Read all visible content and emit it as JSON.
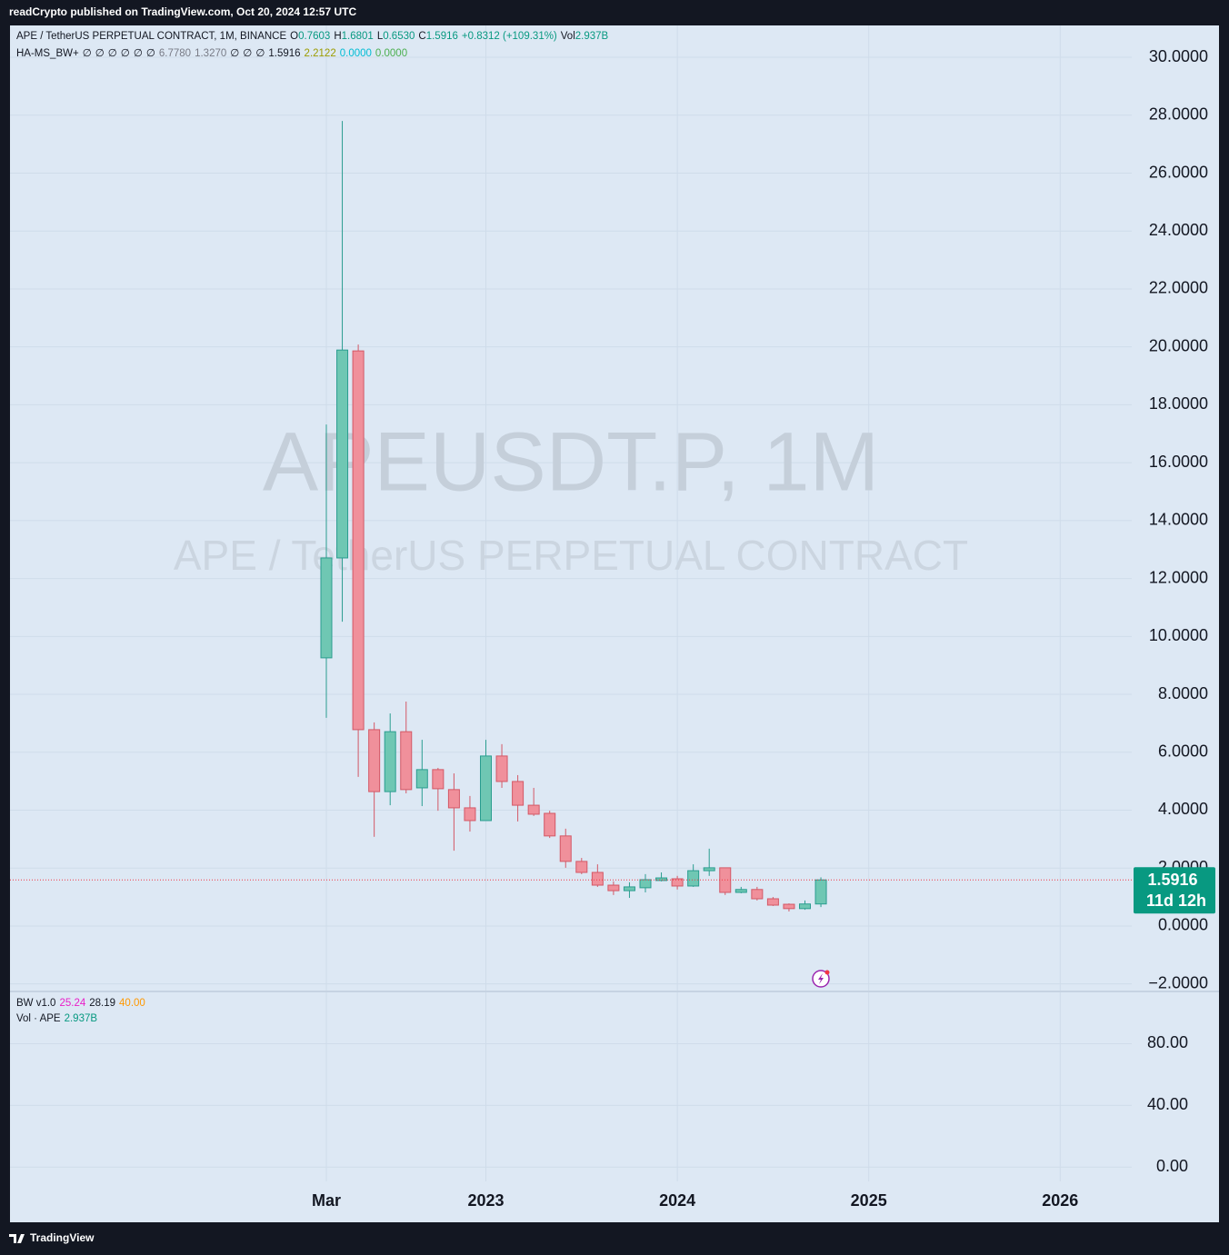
{
  "header": "readCrypto published on TradingView.com, Oct 20, 2024 12:57 UTC",
  "footer": "TradingView",
  "legend": {
    "symbol": "APE / TetherUS PERPETUAL CONTRACT, 1M, BINANCE",
    "ohlc": [
      {
        "label": "O",
        "value": "0.7603"
      },
      {
        "label": "H",
        "value": "1.6801"
      },
      {
        "label": "L",
        "value": "0.6530"
      },
      {
        "label": "C",
        "value": "1.5916"
      }
    ],
    "change": "+0.8312 (+109.31%)",
    "volume_label": "Vol",
    "volume": "2.937B"
  },
  "indicator": {
    "name": "HA-MS_BW+",
    "values": [
      {
        "text": "∅",
        "color": "#131722"
      },
      {
        "text": "∅",
        "color": "#131722"
      },
      {
        "text": "∅",
        "color": "#131722"
      },
      {
        "text": "∅",
        "color": "#131722"
      },
      {
        "text": "∅",
        "color": "#131722"
      },
      {
        "text": "∅",
        "color": "#131722"
      },
      {
        "text": "6.7780",
        "color": "#787b86"
      },
      {
        "text": "1.3270",
        "color": "#787b86"
      },
      {
        "text": "∅",
        "color": "#131722"
      },
      {
        "text": "∅",
        "color": "#131722"
      },
      {
        "text": "∅",
        "color": "#131722"
      },
      {
        "text": "1.5916",
        "color": "#131722"
      },
      {
        "text": "2.2122",
        "color": "#9c9c00"
      },
      {
        "text": "0.0000",
        "color": "#00bcd4"
      },
      {
        "text": "0.0000",
        "color": "#4caf50"
      }
    ]
  },
  "watermark": {
    "symbol": "APEUSDT.P, 1M",
    "description": "APE / TetherUS PERPETUAL CONTRACT"
  },
  "price_label": {
    "price": "1.5916",
    "countdown": "11d 12h",
    "color": "#089981"
  },
  "chart_data": {
    "type": "candlestick",
    "categories": [
      "Mar",
      null,
      null,
      null,
      null,
      null,
      null,
      null,
      null,
      null,
      "2023",
      null,
      null,
      null,
      null,
      null,
      null,
      null,
      null,
      null,
      null,
      null,
      "2024",
      null,
      null,
      null,
      null,
      null,
      null,
      null,
      null,
      null,
      null,
      null,
      "2025",
      null,
      null,
      null,
      null,
      null,
      null,
      null,
      null,
      null,
      null,
      null,
      "2026"
    ],
    "series": [
      {
        "up_color": "#6fc7b3",
        "down_color": "#f0909b",
        "up_border": "#2a9d8f",
        "down_border": "#d35866",
        "open": [
          9.26,
          12.71,
          19.86,
          6.78,
          4.64,
          6.71,
          4.77,
          5.4,
          4.71,
          4.08,
          3.64,
          5.87,
          4.99,
          4.17,
          3.89,
          3.11,
          2.23,
          1.85,
          1.41,
          1.22,
          1.32,
          1.57,
          1.63,
          1.38,
          1.91,
          2.01,
          1.16,
          1.26,
          0.94,
          0.75,
          0.6,
          0.7603,
          null,
          null,
          null,
          null,
          null,
          null,
          null,
          null,
          null,
          null,
          null,
          null,
          null,
          null,
          null
        ],
        "high": [
          17.32,
          27.8,
          20.08,
          7.03,
          7.34,
          7.75,
          6.43,
          5.46,
          5.27,
          4.49,
          6.43,
          6.28,
          5.21,
          4.77,
          3.98,
          3.36,
          2.35,
          2.13,
          1.54,
          1.51,
          1.79,
          1.85,
          1.73,
          2.13,
          2.67,
          2.01,
          1.35,
          1.35,
          1.0,
          0.78,
          0.88,
          1.6801,
          null,
          null,
          null,
          null,
          null,
          null,
          null,
          null,
          null,
          null,
          null,
          null,
          null,
          null,
          null
        ],
        "low": [
          7.19,
          10.51,
          5.15,
          3.08,
          4.17,
          4.58,
          4.14,
          3.98,
          2.6,
          3.26,
          3.64,
          4.77,
          3.61,
          3.8,
          3.04,
          2.01,
          1.79,
          1.35,
          1.07,
          0.97,
          1.16,
          1.54,
          1.26,
          1.35,
          1.73,
          1.07,
          1.13,
          0.88,
          0.69,
          0.5,
          0.56,
          0.653,
          null,
          null,
          null,
          null,
          null,
          null,
          null,
          null,
          null,
          null,
          null,
          null,
          null,
          null,
          null
        ],
        "close": [
          12.71,
          19.89,
          6.78,
          4.64,
          6.71,
          4.71,
          5.4,
          4.74,
          4.08,
          3.64,
          5.87,
          4.99,
          4.17,
          3.86,
          3.11,
          2.23,
          1.85,
          1.41,
          1.22,
          1.35,
          1.6,
          1.66,
          1.38,
          1.91,
          2.01,
          1.16,
          1.26,
          0.94,
          0.72,
          0.6,
          0.76,
          1.5916,
          null,
          null,
          null,
          null,
          null,
          null,
          null,
          null,
          null,
          null,
          null,
          null,
          null,
          null,
          null
        ]
      }
    ],
    "ylim": [
      -2.23,
      31.1
    ],
    "yticks": [
      {
        "value": -2,
        "label": "−2.0000"
      },
      {
        "value": 0,
        "label": "0.0000"
      },
      {
        "value": 2,
        "label": "2.0000"
      },
      {
        "value": 4,
        "label": "4.0000"
      },
      {
        "value": 6,
        "label": "6.0000"
      },
      {
        "value": 8,
        "label": "8.0000"
      },
      {
        "value": 10,
        "label": "10.0000"
      },
      {
        "value": 12,
        "label": "12.0000"
      },
      {
        "value": 14,
        "label": "14.0000"
      },
      {
        "value": 16,
        "label": "16.0000"
      },
      {
        "value": 18,
        "label": "18.0000"
      },
      {
        "value": 20,
        "label": "20.0000"
      },
      {
        "value": 22,
        "label": "22.0000"
      },
      {
        "value": 24,
        "label": "24.0000"
      },
      {
        "value": 26,
        "label": "26.0000"
      },
      {
        "value": 28,
        "label": "28.0000"
      },
      {
        "value": 30,
        "label": "30.0000"
      }
    ],
    "grid": true,
    "current_price": 1.5916,
    "lower_pane": {
      "bw": {
        "name": "BW v1.0",
        "values": [
          {
            "text": "25.24",
            "color": "#e91ec8"
          },
          {
            "text": "28.19",
            "color": "#131722"
          },
          {
            "text": "40.00",
            "color": "#ff9800"
          }
        ]
      },
      "vol": {
        "name": "Vol · APE",
        "value": "2.937B"
      },
      "ylim": [
        -9.3,
        113.3
      ],
      "yticks": [
        {
          "value": 0,
          "label": "0.00"
        },
        {
          "value": 40,
          "label": "40.00"
        },
        {
          "value": 80,
          "label": "80.00"
        }
      ]
    }
  }
}
